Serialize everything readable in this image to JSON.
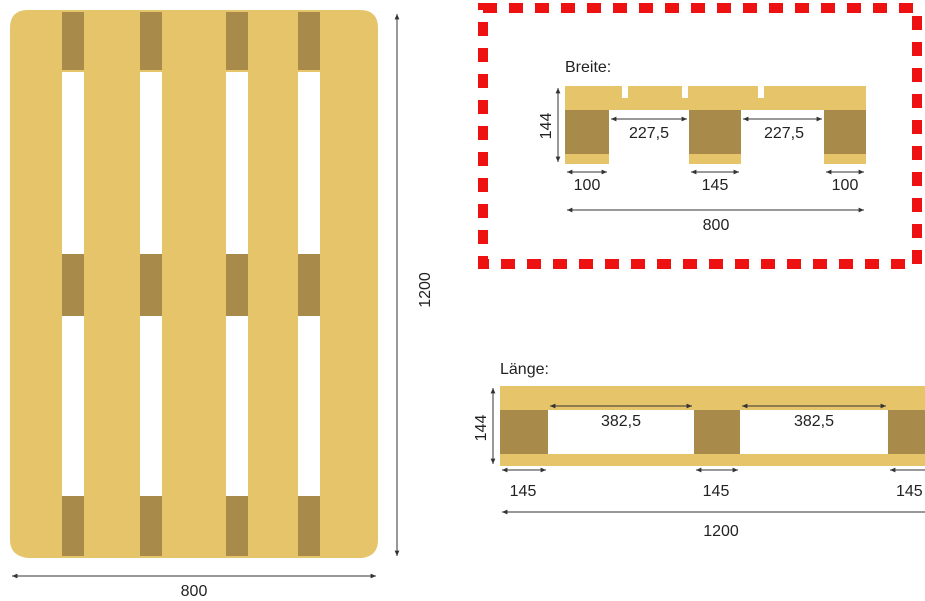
{
  "colors": {
    "wood": "#E6C46A",
    "block": "#A88B4A",
    "line": "#333333",
    "highlight": "#EE1111",
    "background": "#FFFFFF"
  },
  "top_view": {
    "width_label": "800",
    "length_label": "1200"
  },
  "breite": {
    "title": "Breite:",
    "height_label": "144",
    "gap_left_label": "227,5",
    "gap_right_label": "227,5",
    "block_left_label": "100",
    "block_mid_label": "145",
    "block_right_label": "100",
    "total_label": "800"
  },
  "laenge": {
    "title": "Länge:",
    "height_label": "144",
    "gap_left_label": "382,5",
    "gap_right_label": "382,5",
    "block_left_label": "145",
    "block_mid_label": "145",
    "block_right_label": "145",
    "total_label": "1200"
  }
}
